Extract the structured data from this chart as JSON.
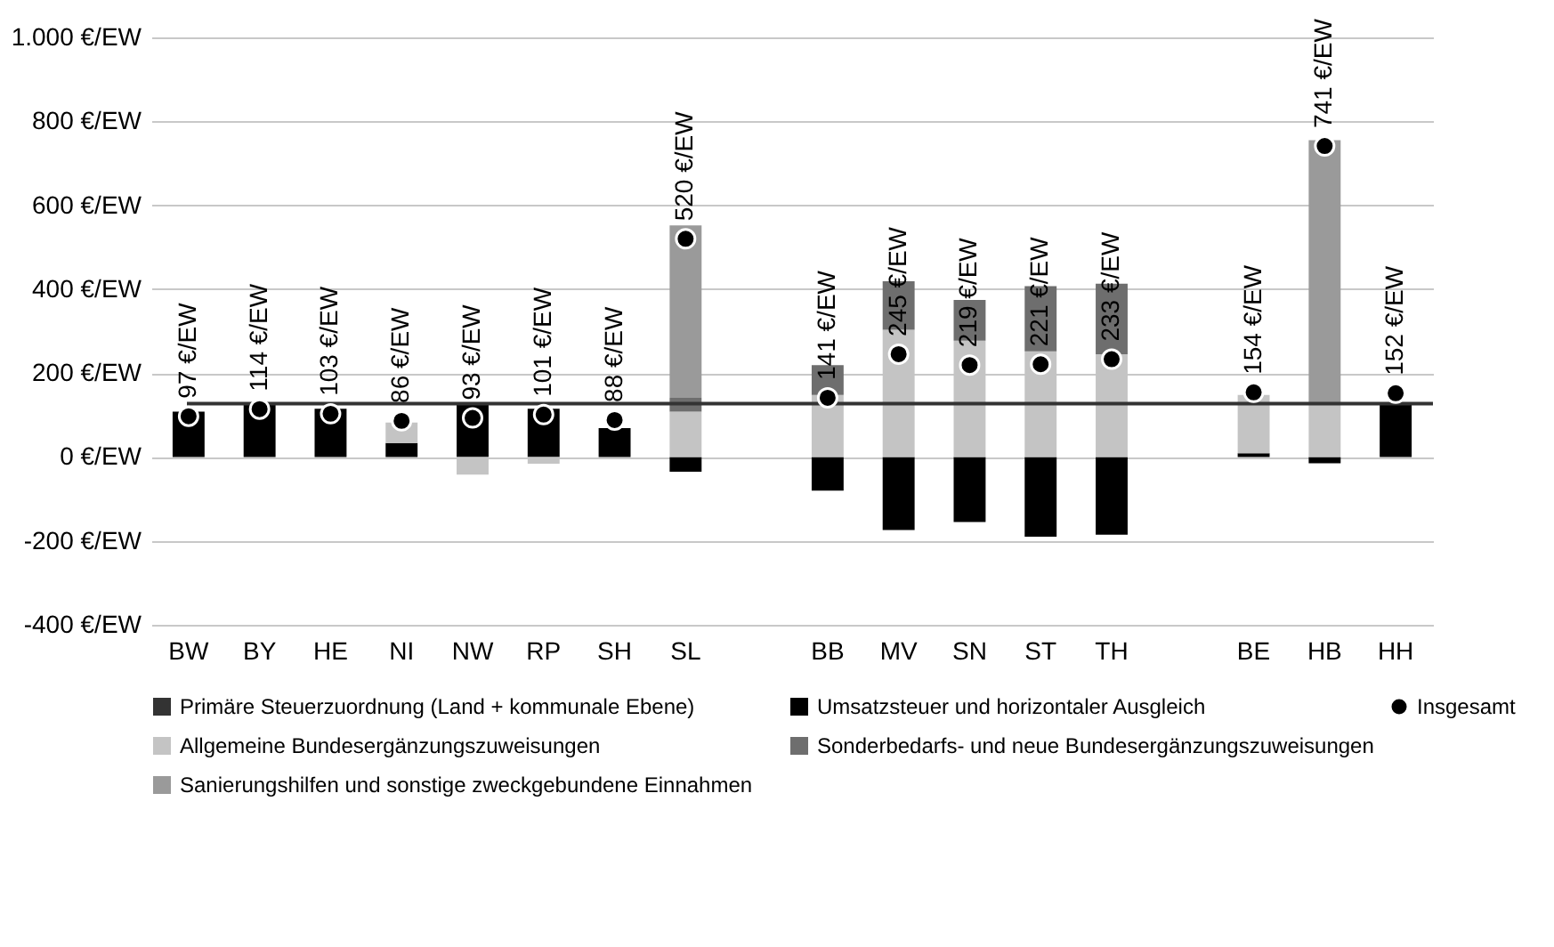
{
  "chart_data": {
    "type": "bar",
    "stacked": true,
    "categories": [
      "BW",
      "BY",
      "HE",
      "NI",
      "NW",
      "RP",
      "SH",
      "SL",
      null,
      "BB",
      "MV",
      "SN",
      "ST",
      "TH",
      null,
      "BE",
      "HB",
      "HH"
    ],
    "series": [
      {
        "name": "Primäre Steuerzuordnung (Land + kommunale Ebene)",
        "color": "#333333",
        "values": [
          0,
          0,
          0,
          0,
          0,
          0,
          0,
          0,
          null,
          0,
          0,
          0,
          0,
          0,
          null,
          0,
          0,
          0
        ]
      },
      {
        "name": "Umsatzsteuer und horizontaler Ausgleich",
        "color": "#000000",
        "values": [
          108,
          128,
          115,
          33,
          128,
          115,
          69,
          -35,
          null,
          -80,
          -174,
          -155,
          -190,
          -185,
          null,
          9,
          -15,
          129
        ]
      },
      {
        "name": "Allgemeine Bundesergänzungszuweisungen",
        "color": "#c4c4c4",
        "values": [
          0,
          0,
          0,
          49,
          -42,
          -16,
          null,
          108,
          null,
          148,
          303,
          277,
          252,
          245,
          null,
          139,
          129,
          0
        ]
      },
      {
        "name": "Sonderbedarfs- und neue Bundesergänzungszuweisungen",
        "color": "#6e6e6e",
        "values": [
          0,
          0,
          0,
          0,
          0,
          0,
          0,
          33,
          null,
          71,
          116,
          97,
          155,
          168,
          null,
          0,
          0,
          0
        ]
      },
      {
        "name": "Sanierungshilfen und sonstige zweckgebundene Einnahmen",
        "color": "#9a9a9a",
        "values": [
          0,
          0,
          0,
          0,
          0,
          0,
          0,
          411,
          null,
          0,
          0,
          0,
          0,
          0,
          null,
          0,
          626,
          0
        ]
      },
      {
        "name": "Insgesamt",
        "type": "scatter",
        "marker": "circle",
        "color": "#000000",
        "values": [
          97,
          114,
          103,
          86,
          93,
          101,
          88,
          520,
          null,
          141,
          245,
          219,
          221,
          233,
          null,
          154,
          741,
          152
        ],
        "value_labels": [
          "97 €/EW",
          "114 €/EW",
          "103 €/EW",
          "86 €/EW",
          "93 €/EW",
          "101 €/EW",
          "88 €/EW",
          "520 €/EW",
          null,
          "141 €/EW",
          "245 €/EW",
          "219 €/EW",
          "221 €/EW",
          "233 €/EW",
          null,
          "154 €/EW",
          "741 €/EW",
          "152 €/EW"
        ]
      }
    ],
    "ylim": [
      -400,
      1000
    ],
    "yticks": [
      {
        "value": -400,
        "label": "-400 €/EW"
      },
      {
        "value": -200,
        "label": "-200 €/EW"
      },
      {
        "value": 0,
        "label": "0 €/EW"
      },
      {
        "value": 200,
        "label": "200 €/EW"
      },
      {
        "value": 400,
        "label": "400 €/EW"
      },
      {
        "value": 600,
        "label": "600 €/EW"
      },
      {
        "value": 800,
        "label": "800 €/EW"
      },
      {
        "value": 1000,
        "label": "1.000 €/EW"
      }
    ],
    "ref_lines": [
      {
        "axis": "y",
        "value": 127,
        "color": "#333333",
        "line_style": "solid"
      }
    ],
    "grid": "y",
    "legend": "bottom"
  }
}
